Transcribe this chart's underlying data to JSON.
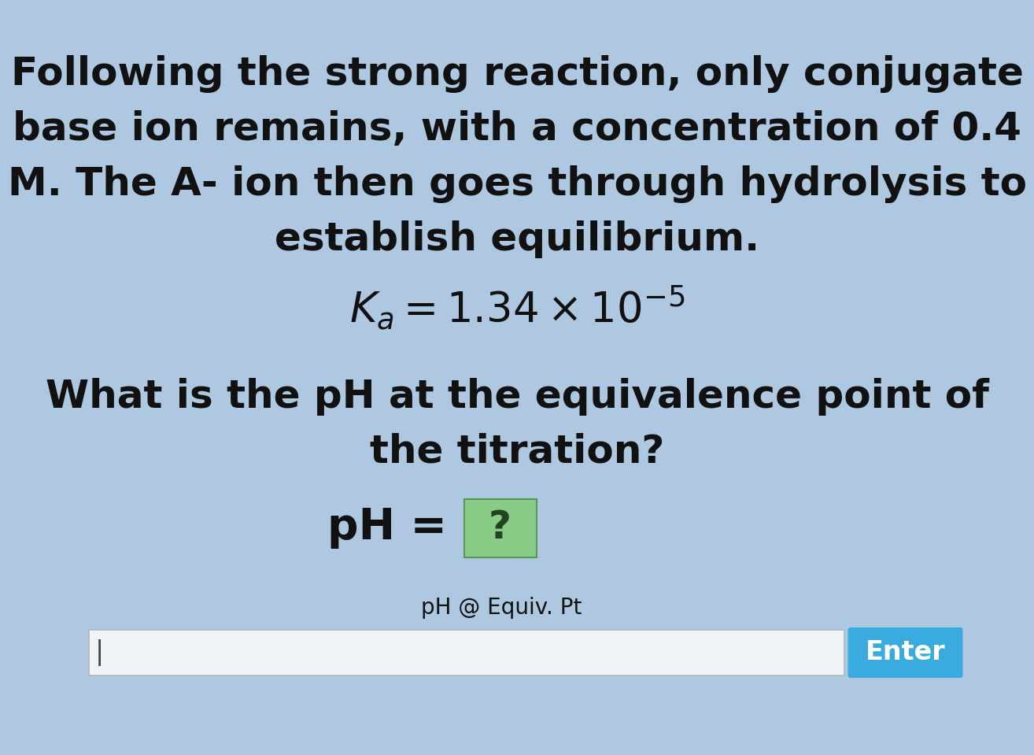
{
  "background_color": "#adc8e0",
  "text_lines": [
    "Following the strong reaction, only conjugate",
    "base ion remains, with a concentration of 0.4",
    "M. The A- ion then goes through hydrolysis to",
    "establish equilibrium."
  ],
  "question_lines": [
    "What is the pH at the equivalence point of",
    "the titration?"
  ],
  "input_label": "pH @ Equiv. Pt",
  "enter_button_text": "Enter",
  "enter_button_color": "#3aabdf",
  "text_color": "#111111",
  "box_fill_color": "#88cc88",
  "box_border_color": "#559955",
  "box_text_color": "#224422",
  "input_box_bg": "#f0f4f8",
  "input_box_border": "#b0b8c0",
  "font_size_main": 36,
  "font_size_ka": 34,
  "font_size_question": 36,
  "font_size_ph": 40,
  "font_size_label": 20,
  "font_size_enter": 24,
  "font_size_input_cursor": 24
}
